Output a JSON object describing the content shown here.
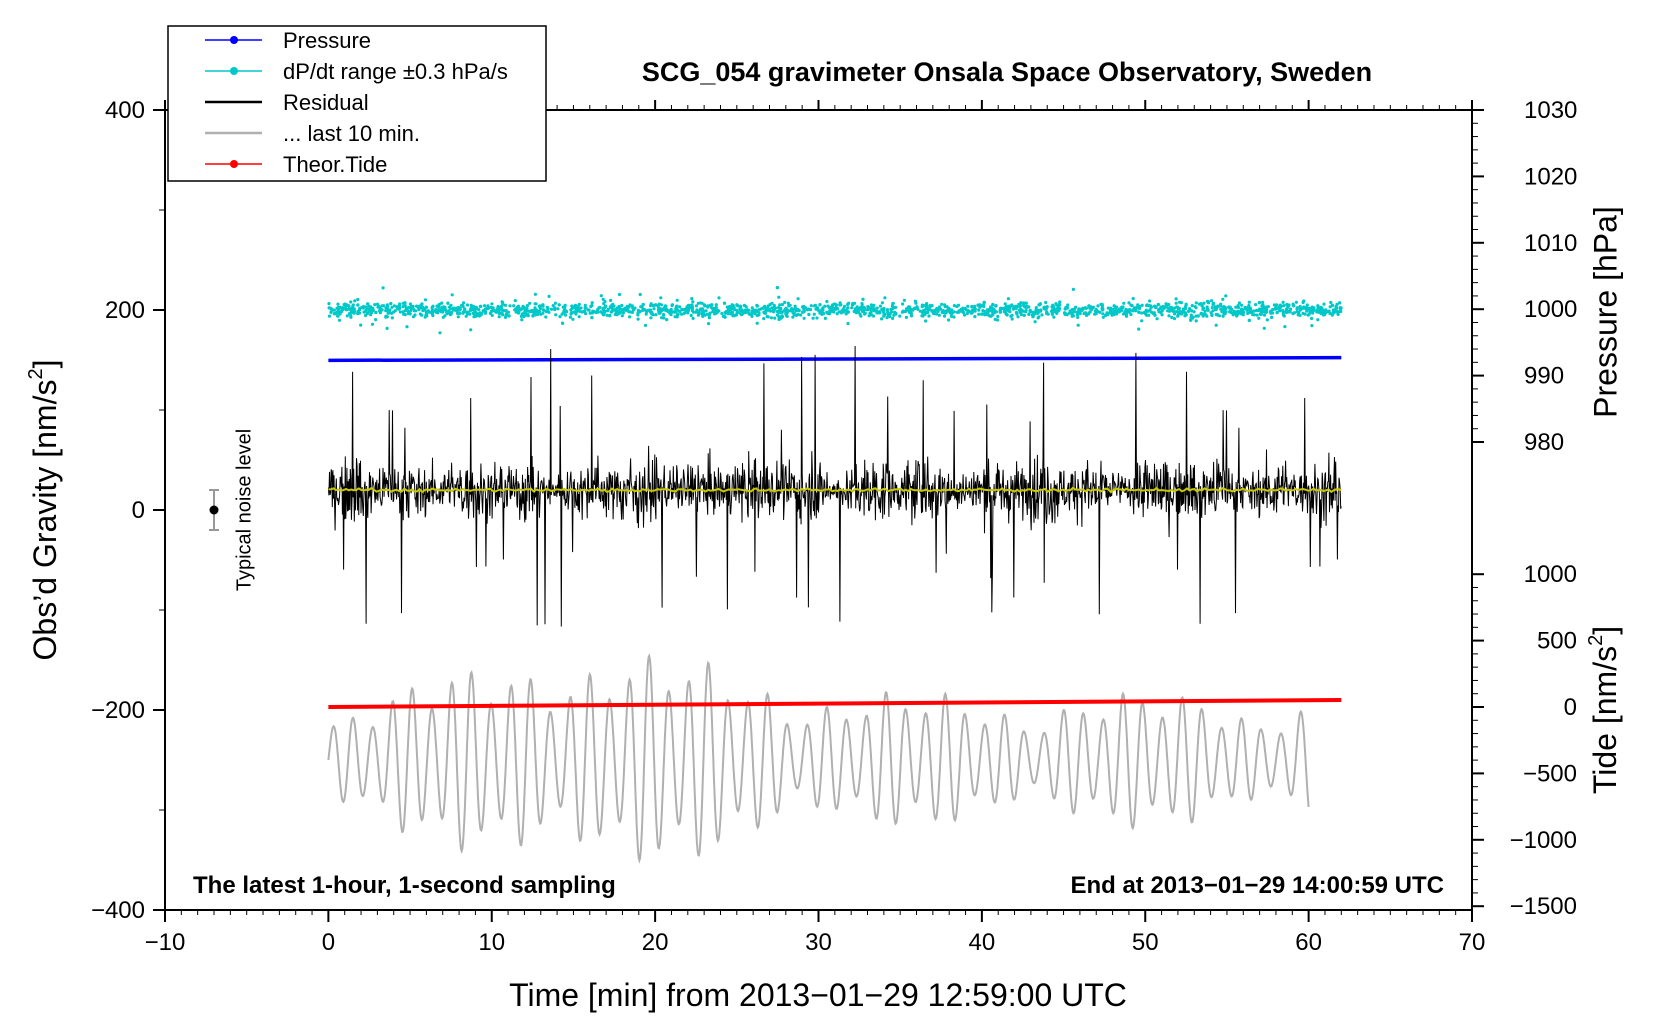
{
  "chart_data": {
    "type": "line",
    "title": "SCG_054 gravimeter Onsala Space Observatory, Sweden",
    "xlabel": "Time [min] from 2013−01−29 12:59:00 UTC",
    "ylabel_main": "Obs’d Gravity [nm/s",
    "ylabel_main_sup": "2",
    "ylabel_main_close": "]",
    "ylabel_pressure": "Pressure [hPa]",
    "ylabel_tide": "Tide [nm/s",
    "ylabel_tide_sup": "2",
    "ylabel_tide_close": "]",
    "xlim": [
      -10,
      70
    ],
    "ylim": [
      -400,
      400
    ],
    "x_ticks": [
      -10,
      0,
      10,
      20,
      30,
      40,
      50,
      60,
      70
    ],
    "x_tick_labels": [
      "−10",
      "0",
      "10",
      "20",
      "30",
      "40",
      "50",
      "60",
      "70"
    ],
    "y_ticks": [
      400,
      200,
      0,
      -200,
      -400
    ],
    "y_tick_labels": [
      "400",
      "200",
      "0",
      "−200",
      "−400"
    ],
    "pressure_axis": {
      "ticks": [
        1030,
        1020,
        1010,
        1000,
        990,
        980
      ],
      "labels": [
        "1030",
        "1020",
        "1010",
        "1000",
        "990",
        "980"
      ],
      "range": [
        1030,
        980
      ]
    },
    "tide_axis": {
      "ticks": [
        1000,
        500,
        0,
        -500,
        -1000,
        -1500
      ],
      "labels": [
        "1000",
        "500",
        "0",
        "−500",
        "−1000",
        "−1500"
      ],
      "range": [
        -1500,
        1000
      ]
    },
    "legend": [
      {
        "name": "Pressure",
        "color": "#0000ff",
        "marker": true
      },
      {
        "name": "dP/dt range ±0.3 hPa/s",
        "color": "#00c8c8",
        "marker": true
      },
      {
        "name": "Residual",
        "color": "#000000",
        "marker": false
      },
      {
        "name": "... last 10 min.",
        "color": "#b0b0b0",
        "marker": false
      },
      {
        "name": "Theor.Tide",
        "color": "#ff0000",
        "marker": true
      }
    ],
    "series": [
      {
        "name": "Pressure",
        "color": "#0000ff",
        "x_range": [
          0,
          62
        ],
        "start_hpa": 992.3,
        "end_hpa": 992.7
      },
      {
        "name": "dP/dt range ±0.3 hPa/s",
        "color": "#00c8c8",
        "x_range": [
          0,
          62
        ],
        "center": 200,
        "spread": 25
      },
      {
        "name": "Residual",
        "color": "#000000",
        "x_range": [
          0,
          62
        ],
        "baseline": 20,
        "typical_amplitude": 50,
        "max": 180,
        "min": -160
      },
      {
        "name": "... last 10 min.",
        "color": "#b0b0b0",
        "x_range": [
          0,
          60
        ],
        "center": -250,
        "max": -105,
        "min": -370
      },
      {
        "name": "Theor.Tide",
        "color": "#ff0000",
        "x_range": [
          0,
          62
        ],
        "start": -197,
        "end": -190
      },
      {
        "name": "Residual smoothed",
        "color": "#c8c800",
        "x_range": [
          0,
          62
        ],
        "value": 20
      }
    ],
    "noise_marker": {
      "label": "Typical noise level",
      "x": -7,
      "y": 0,
      "error": 20
    },
    "notes": {
      "left": "The latest 1-hour, 1-second sampling",
      "right": "End at 2013−01−29 14:00:59 UTC"
    },
    "colors": {
      "pressure": "#0000ff",
      "dpdt": "#00c8c8",
      "residual": "#000000",
      "last10": "#b0b0b0",
      "tide": "#ff0000",
      "smooth": "#c8c800"
    }
  }
}
